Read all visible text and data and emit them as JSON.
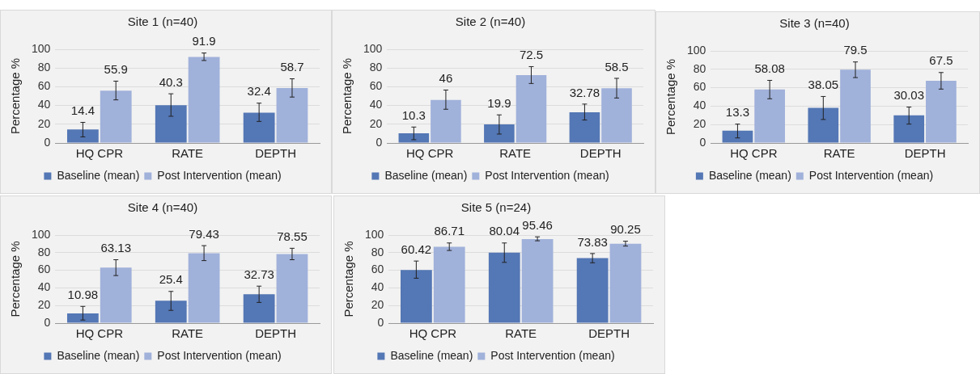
{
  "chart_data": [
    {
      "type": "bar",
      "title": "Site 1 (n=40)",
      "ylabel": "Percentage %",
      "categories": [
        "HQ CPR",
        "RATE",
        "DEPTH"
      ],
      "ylim": [
        0,
        100
      ],
      "yticks": [
        0,
        20,
        40,
        60,
        80,
        100
      ],
      "grid": "y",
      "legend": "bottom",
      "data_labels": true,
      "series": [
        {
          "name": "Baseline (mean)",
          "color": "#5477b5",
          "values": [
            14.4,
            40.3,
            32.4
          ],
          "errors": [
            [
              6.5,
              22
            ],
            [
              28.5,
              52.5
            ],
            [
              23,
              42.5
            ]
          ]
        },
        {
          "name": "Post Intervention (mean)",
          "color": "#a0b1da",
          "values": [
            55.9,
            91.9,
            58.7
          ],
          "errors": [
            [
              46,
              66
            ],
            [
              88,
              96
            ],
            [
              49,
              68.5
            ]
          ]
        }
      ]
    },
    {
      "type": "bar",
      "title": "Site 2 (n=40)",
      "ylabel": "Percentage %",
      "categories": [
        "HQ CPR",
        "RATE",
        "DEPTH"
      ],
      "ylim": [
        0,
        100
      ],
      "yticks": [
        0,
        20,
        40,
        60,
        80,
        100
      ],
      "grid": "y",
      "legend": "bottom",
      "data_labels": true,
      "series": [
        {
          "name": "Baseline (mean)",
          "color": "#5477b5",
          "values": [
            10.3,
            19.9,
            32.78
          ],
          "errors": [
            [
              3.5,
              17
            ],
            [
              9.5,
              30
            ],
            [
              24.5,
              41.5
            ]
          ]
        },
        {
          "name": "Post Intervention (mean)",
          "color": "#a0b1da",
          "values": [
            46,
            72.5,
            58.5
          ],
          "errors": [
            [
              36,
              56.5
            ],
            [
              63.5,
              81.5
            ],
            [
              48,
              69
            ]
          ]
        }
      ]
    },
    {
      "type": "bar",
      "title": "Site 3 (n=40)",
      "ylabel": "Percentage %",
      "categories": [
        "HQ CPR",
        "RATE",
        "DEPTH"
      ],
      "ylim": [
        0,
        100
      ],
      "yticks": [
        0,
        20,
        40,
        60,
        80,
        100
      ],
      "grid": "y",
      "legend": "bottom",
      "data_labels": true,
      "series": [
        {
          "name": "Baseline (mean)",
          "color": "#5477b5",
          "values": [
            13.3,
            38.05,
            30.03
          ],
          "errors": [
            [
              5.5,
              20.5
            ],
            [
              25.5,
              50.5
            ],
            [
              20.5,
              39
            ]
          ]
        },
        {
          "name": "Post Intervention (mean)",
          "color": "#a0b1da",
          "values": [
            58.08,
            79.5,
            67.5
          ],
          "errors": [
            [
              48,
              68
            ],
            [
              71,
              88
            ],
            [
              58.5,
              76.5
            ]
          ]
        }
      ]
    },
    {
      "type": "bar",
      "title": "Site 4 (n=40)",
      "ylabel": "Percentage %",
      "categories": [
        "HQ CPR",
        "RATE",
        "DEPTH"
      ],
      "ylim": [
        0,
        100
      ],
      "yticks": [
        0,
        20,
        40,
        60,
        80,
        100
      ],
      "grid": "y",
      "legend": "bottom",
      "data_labels": true,
      "series": [
        {
          "name": "Baseline (mean)",
          "color": "#5477b5",
          "values": [
            10.98,
            25.4,
            32.73
          ],
          "errors": [
            [
              3.5,
              19
            ],
            [
              14.5,
              36
            ],
            [
              23.5,
              42
            ]
          ]
        },
        {
          "name": "Post Intervention (mean)",
          "color": "#a0b1da",
          "values": [
            63.13,
            79.43,
            78.55
          ],
          "errors": [
            [
              54,
              72
            ],
            [
              71,
              88
            ],
            [
              72,
              85
            ]
          ]
        }
      ]
    },
    {
      "type": "bar",
      "title": "Site 5 (n=24)",
      "ylabel": "Percentage %",
      "categories": [
        "HQ CPR",
        "RATE",
        "DEPTH"
      ],
      "ylim": [
        0,
        100
      ],
      "yticks": [
        0,
        20,
        40,
        60,
        80,
        100
      ],
      "grid": "y",
      "legend": "bottom",
      "data_labels": true,
      "series": [
        {
          "name": "Baseline (mean)",
          "color": "#5477b5",
          "values": [
            60.42,
            80.04,
            73.83
          ],
          "errors": [
            [
              51,
              70.5
            ],
            [
              69,
              91
            ],
            [
              68.5,
              79
            ]
          ]
        },
        {
          "name": "Post Intervention (mean)",
          "color": "#a0b1da",
          "values": [
            86.71,
            95.46,
            90.25
          ],
          "errors": [
            [
              82.5,
              91
            ],
            [
              93.5,
              98
            ],
            [
              87.5,
              93
            ]
          ]
        }
      ]
    }
  ]
}
